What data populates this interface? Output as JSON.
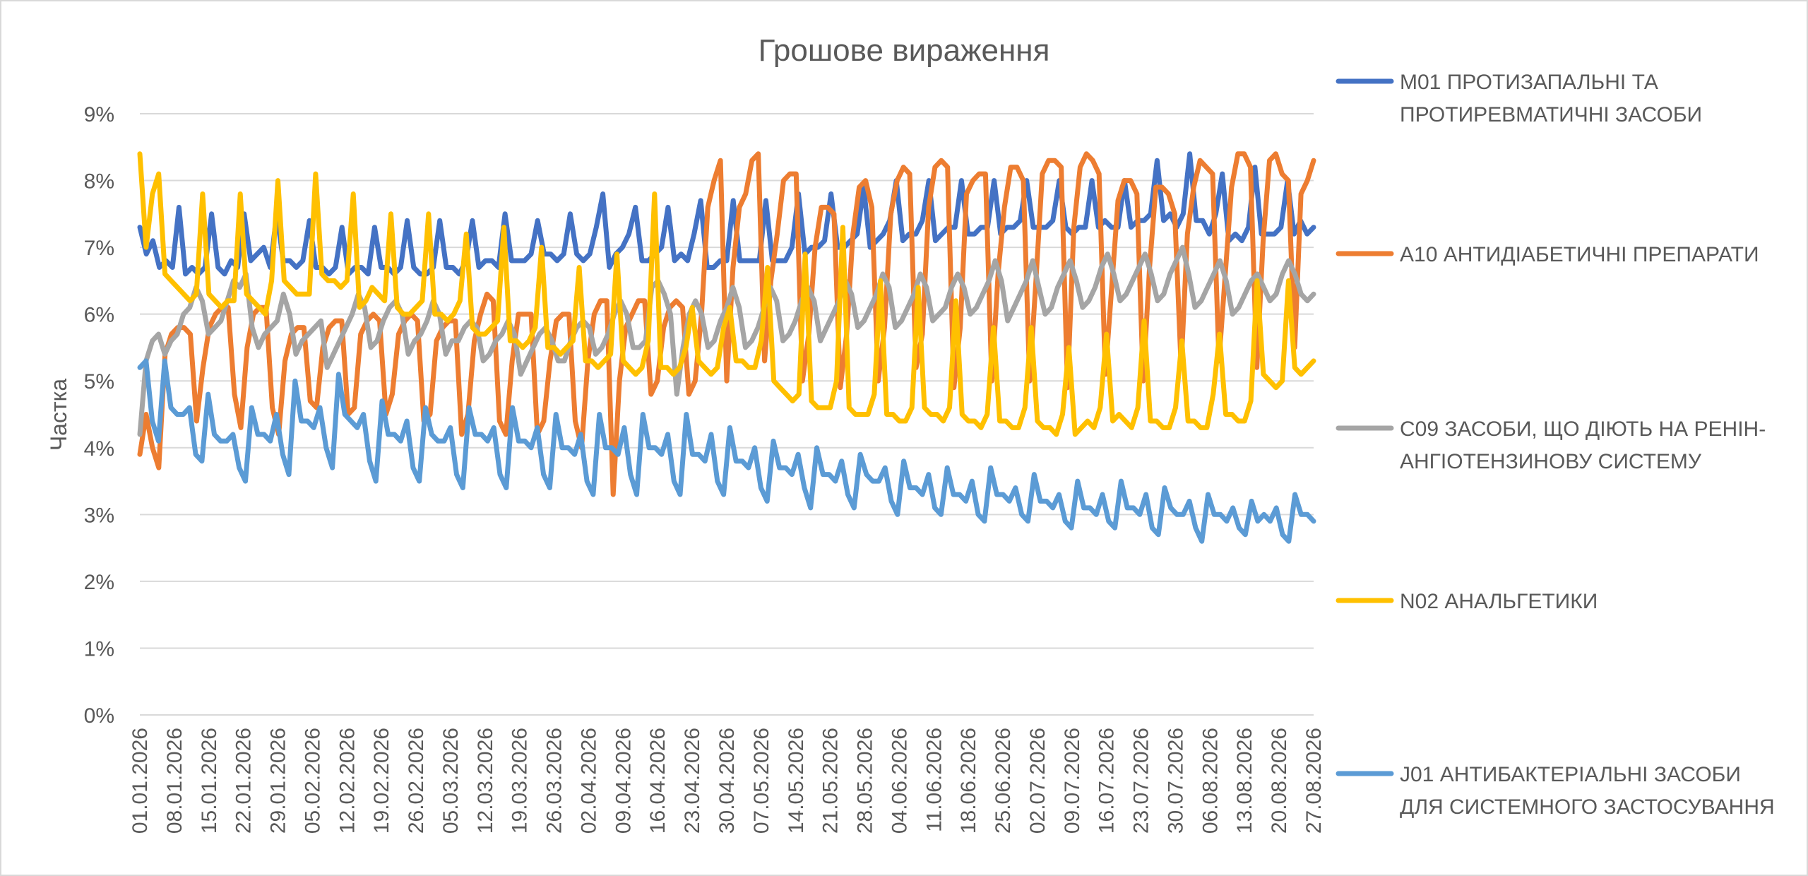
{
  "chart_data": {
    "type": "line",
    "title": "Грошове вираження",
    "ylabel": "Частка",
    "xlabel": "",
    "ylim": [
      0,
      9
    ],
    "y_ticks": [
      "0%",
      "1%",
      "2%",
      "3%",
      "4%",
      "5%",
      "6%",
      "7%",
      "8%",
      "9%"
    ],
    "grid": true,
    "legend_position": "right",
    "x_tick_labels": [
      "01.01.2026",
      "08.01.2026",
      "15.01.2026",
      "22.01.2026",
      "29.01.2026",
      "05.02.2026",
      "12.02.2026",
      "19.02.2026",
      "26.02.2026",
      "05.03.2026",
      "12.03.2026",
      "19.03.2026",
      "26.03.2026",
      "02.04.2026",
      "09.04.2026",
      "16.04.2026",
      "23.04.2026",
      "30.04.2026",
      "07.05.2026",
      "14.05.2026",
      "21.05.2026",
      "28.05.2026",
      "04.06.2026",
      "11.06.2026",
      "18.06.2026",
      "25.06.2026",
      "02.07.2026",
      "09.07.2026",
      "16.07.2026",
      "23.07.2026",
      "30.07.2026",
      "06.08.2026",
      "13.08.2026",
      "20.08.2026",
      "27.08.2026"
    ],
    "x_start": "01.01.2026",
    "x_end": "27.08.2026",
    "series": [
      {
        "name": "M01 ПРОТИЗАПАЛЬНІ ТА ПРОТИРЕВМАТИЧНІ ЗАСОБИ",
        "color": "#4472c4",
        "legend_lines": [
          "M01 ПРОТИЗАПАЛЬНІ ТА",
          "ПРОТИРЕВМАТИЧНІ ЗАСОБИ"
        ],
        "values": [
          7.3,
          6.9,
          7.1,
          6.7,
          6.8,
          6.7,
          7.6,
          6.6,
          6.7,
          6.6,
          6.7,
          7.5,
          6.7,
          6.6,
          6.8,
          6.7,
          7.5,
          6.8,
          6.9,
          7.0,
          6.7,
          7.5,
          6.8,
          6.8,
          6.7,
          6.8,
          7.4,
          6.7,
          6.7,
          6.6,
          6.7,
          7.3,
          6.6,
          6.7,
          6.7,
          6.6,
          7.3,
          6.7,
          6.7,
          6.6,
          6.7,
          7.4,
          6.7,
          6.6,
          6.6,
          6.7,
          7.4,
          6.7,
          6.7,
          6.6,
          6.8,
          7.4,
          6.7,
          6.8,
          6.8,
          6.7,
          7.5,
          6.8,
          6.8,
          6.8,
          6.9,
          7.4,
          6.9,
          6.9,
          6.8,
          6.9,
          7.5,
          6.9,
          6.8,
          6.9,
          7.3,
          7.8,
          6.7,
          6.9,
          7.0,
          7.2,
          7.6,
          6.8,
          6.8,
          6.9,
          7.0,
          7.6,
          6.8,
          6.9,
          6.8,
          7.2,
          7.7,
          6.7,
          6.7,
          6.8,
          6.8,
          7.7,
          6.8,
          6.8,
          6.8,
          6.8,
          7.7,
          6.8,
          6.8,
          6.8,
          7.0,
          7.8,
          6.9,
          7.0,
          7.0,
          7.1,
          7.8,
          7.0,
          7.0,
          7.1,
          7.2,
          7.9,
          7.0,
          7.1,
          7.2,
          7.4,
          8.0,
          7.1,
          7.2,
          7.2,
          7.4,
          8.0,
          7.1,
          7.2,
          7.3,
          7.3,
          8.0,
          7.2,
          7.2,
          7.3,
          7.3,
          8.0,
          7.2,
          7.3,
          7.3,
          7.4,
          8.0,
          7.3,
          7.3,
          7.3,
          7.4,
          8.0,
          7.3,
          7.2,
          7.3,
          7.3,
          8.0,
          7.3,
          7.4,
          7.3,
          7.3,
          8.0,
          7.3,
          7.4,
          7.4,
          7.5,
          8.3,
          7.4,
          7.5,
          7.3,
          7.5,
          8.4,
          7.4,
          7.4,
          7.2,
          7.5,
          8.1,
          7.1,
          7.2,
          7.1,
          7.3,
          8.2,
          7.2,
          7.2,
          7.2,
          7.3,
          8.0,
          7.2,
          7.4,
          7.2,
          7.3
        ]
      },
      {
        "name": "A10 АНТИДІАБЕТИЧНІ ПРЕПАРАТИ",
        "color": "#ed7d31",
        "legend_lines": [
          "A10 АНТИДІАБЕТИЧНІ ПРЕПАРАТИ"
        ],
        "values": [
          3.9,
          4.5,
          4.0,
          3.7,
          5.4,
          5.7,
          5.8,
          5.8,
          5.7,
          4.4,
          5.2,
          5.8,
          6.0,
          6.1,
          6.1,
          4.8,
          4.3,
          5.5,
          6.0,
          6.1,
          6.1,
          4.6,
          4.2,
          5.3,
          5.7,
          5.8,
          5.8,
          4.7,
          4.6,
          5.5,
          5.8,
          5.9,
          5.9,
          4.5,
          4.6,
          5.7,
          5.9,
          6.0,
          5.9,
          4.5,
          4.8,
          5.7,
          5.9,
          6.0,
          5.9,
          4.4,
          4.5,
          5.6,
          5.8,
          5.9,
          5.9,
          4.2,
          4.5,
          5.6,
          6.0,
          6.3,
          6.2,
          4.4,
          4.2,
          5.3,
          6.0,
          6.0,
          6.0,
          4.2,
          4.4,
          5.3,
          5.9,
          6.0,
          6.0,
          4.4,
          4.0,
          5.3,
          6.0,
          6.2,
          6.2,
          3.3,
          5.0,
          5.8,
          6.0,
          6.2,
          6.2,
          4.8,
          5.0,
          5.8,
          6.1,
          6.2,
          6.1,
          4.8,
          5.0,
          6.0,
          7.6,
          8.0,
          8.3,
          5.0,
          6.7,
          7.6,
          7.8,
          8.3,
          8.4,
          5.3,
          6.5,
          7.2,
          8.0,
          8.1,
          8.1,
          5.0,
          5.7,
          7.0,
          7.6,
          7.6,
          7.5,
          4.9,
          5.7,
          7.2,
          7.9,
          8.0,
          7.6,
          5.0,
          5.8,
          7.5,
          8.0,
          8.2,
          8.1,
          5.2,
          5.7,
          7.6,
          8.2,
          8.3,
          8.2,
          4.9,
          5.8,
          7.8,
          8.0,
          8.1,
          8.1,
          5.0,
          6.6,
          7.6,
          8.2,
          8.2,
          8.0,
          5.0,
          6.5,
          8.1,
          8.3,
          8.3,
          8.2,
          4.9,
          7.3,
          8.2,
          8.4,
          8.3,
          8.1,
          5.1,
          6.4,
          7.7,
          8.0,
          8.0,
          7.8,
          5.0,
          6.7,
          7.9,
          7.9,
          7.8,
          7.5,
          5.2,
          7.2,
          7.9,
          8.3,
          8.2,
          8.1,
          5.3,
          6.6,
          7.9,
          8.4,
          8.4,
          8.2,
          5.2,
          7.1,
          8.3,
          8.4,
          8.1,
          8.0,
          5.5,
          7.8,
          8.0,
          8.3
        ]
      },
      {
        "name": "C09 ЗАСОБИ, ЩО ДІЮТЬ НА РЕНІН-АНГІОТЕНЗИНОВУ СИСТЕМУ",
        "color": "#a5a5a5",
        "legend_lines": [
          "C09 ЗАСОБИ, ЩО ДІЮТЬ НА РЕНІН-",
          "АНГІОТЕНЗИНОВУ СИСТЕМУ"
        ],
        "values": [
          4.2,
          5.3,
          5.6,
          5.7,
          5.4,
          5.6,
          5.7,
          6.0,
          6.1,
          6.4,
          6.2,
          5.7,
          5.8,
          5.9,
          6.2,
          6.5,
          6.4,
          6.6,
          5.8,
          5.5,
          5.7,
          5.8,
          5.9,
          6.3,
          6.0,
          5.4,
          5.6,
          5.7,
          5.8,
          5.9,
          5.2,
          5.4,
          5.6,
          5.8,
          6.0,
          6.3,
          6.1,
          5.5,
          5.6,
          5.9,
          6.1,
          6.2,
          6.0,
          5.4,
          5.6,
          5.7,
          5.9,
          6.2,
          6.0,
          5.4,
          5.6,
          5.6,
          5.8,
          5.9,
          5.8,
          5.3,
          5.4,
          5.6,
          5.7,
          5.9,
          5.7,
          5.1,
          5.3,
          5.5,
          5.7,
          5.8,
          5.6,
          5.3,
          5.3,
          5.6,
          5.8,
          5.9,
          5.8,
          5.4,
          5.5,
          5.7,
          6.0,
          6.2,
          6.0,
          5.5,
          5.5,
          5.6,
          6.4,
          6.5,
          6.3,
          6.0,
          4.8,
          5.5,
          6.0,
          6.2,
          6.0,
          5.5,
          5.6,
          5.9,
          6.1,
          6.4,
          6.1,
          5.5,
          5.6,
          5.8,
          6.1,
          6.4,
          6.2,
          5.6,
          5.7,
          5.9,
          6.2,
          6.4,
          6.2,
          5.6,
          5.8,
          6.0,
          6.2,
          6.5,
          6.3,
          5.8,
          5.9,
          6.1,
          6.3,
          6.6,
          6.4,
          5.8,
          5.9,
          6.1,
          6.3,
          6.6,
          6.4,
          5.9,
          6.0,
          6.1,
          6.4,
          6.6,
          6.4,
          6.0,
          6.1,
          6.3,
          6.5,
          6.8,
          6.5,
          5.9,
          6.1,
          6.3,
          6.5,
          6.8,
          6.4,
          6.0,
          6.1,
          6.4,
          6.6,
          6.8,
          6.5,
          6.1,
          6.2,
          6.4,
          6.7,
          6.9,
          6.6,
          6.2,
          6.3,
          6.5,
          6.7,
          6.9,
          6.6,
          6.2,
          6.3,
          6.6,
          6.8,
          7.0,
          6.6,
          6.1,
          6.2,
          6.4,
          6.6,
          6.8,
          6.5,
          6.0,
          6.1,
          6.3,
          6.5,
          6.6,
          6.4,
          6.2,
          6.3,
          6.6,
          6.8,
          6.6,
          6.3,
          6.2,
          6.3
        ]
      },
      {
        "name": "N02 АНАЛЬГЕТИКИ",
        "color": "#ffc000",
        "legend_lines": [
          "N02 АНАЛЬГЕТИКИ"
        ],
        "values": [
          8.4,
          7.0,
          7.8,
          8.1,
          6.6,
          6.5,
          6.4,
          6.3,
          6.2,
          6.3,
          7.8,
          6.3,
          6.2,
          6.1,
          6.2,
          6.2,
          7.8,
          6.3,
          6.2,
          6.1,
          6.0,
          6.5,
          8.0,
          6.5,
          6.4,
          6.3,
          6.3,
          6.3,
          8.1,
          6.6,
          6.5,
          6.5,
          6.4,
          6.5,
          7.8,
          6.1,
          6.2,
          6.4,
          6.3,
          6.2,
          7.5,
          6.1,
          6.0,
          6.0,
          6.1,
          6.2,
          7.5,
          6.0,
          6.0,
          5.9,
          6.0,
          6.2,
          7.2,
          5.8,
          5.7,
          5.7,
          5.8,
          5.9,
          7.3,
          5.6,
          5.6,
          5.5,
          5.6,
          5.8,
          7.0,
          5.5,
          5.5,
          5.4,
          5.5,
          5.6,
          6.7,
          5.3,
          5.3,
          5.2,
          5.3,
          5.4,
          6.9,
          5.3,
          5.2,
          5.1,
          5.2,
          5.6,
          7.8,
          5.2,
          5.2,
          5.1,
          5.2,
          5.5,
          6.1,
          5.3,
          5.2,
          5.1,
          5.2,
          5.8,
          6.1,
          5.3,
          5.3,
          5.2,
          5.2,
          5.6,
          6.7,
          5.0,
          4.9,
          4.8,
          4.7,
          4.8,
          6.9,
          4.7,
          4.6,
          4.6,
          4.6,
          5.0,
          7.3,
          4.6,
          4.5,
          4.5,
          4.5,
          4.8,
          6.5,
          4.5,
          4.5,
          4.4,
          4.4,
          4.6,
          6.4,
          4.6,
          4.5,
          4.5,
          4.4,
          4.6,
          6.2,
          4.5,
          4.4,
          4.4,
          4.3,
          4.5,
          5.8,
          4.4,
          4.4,
          4.3,
          4.3,
          4.6,
          5.8,
          4.4,
          4.3,
          4.3,
          4.2,
          4.5,
          5.5,
          4.2,
          4.3,
          4.4,
          4.3,
          4.6,
          5.7,
          4.4,
          4.5,
          4.4,
          4.3,
          4.6,
          5.9,
          4.4,
          4.4,
          4.3,
          4.3,
          4.6,
          5.6,
          4.4,
          4.4,
          4.3,
          4.3,
          4.8,
          5.7,
          4.5,
          4.5,
          4.4,
          4.4,
          4.7,
          6.5,
          5.1,
          5.0,
          4.9,
          5.0,
          6.5,
          5.2,
          5.1,
          5.2,
          5.3
        ]
      },
      {
        "name": "J01 АНТИБАКТЕРІАЛЬНІ ЗАСОБИ ДЛЯ СИСТЕМНОГО ЗАСТОСУВАННЯ",
        "color": "#5b9bd5",
        "legend_lines": [
          "J01 АНТИБАКТЕРІАЛЬНІ ЗАСОБИ",
          "ДЛЯ СИСТЕМНОГО ЗАСТОСУВАННЯ"
        ],
        "values": [
          5.2,
          5.3,
          4.4,
          4.1,
          5.3,
          4.6,
          4.5,
          4.5,
          4.6,
          3.9,
          3.8,
          4.8,
          4.2,
          4.1,
          4.1,
          4.2,
          3.7,
          3.5,
          4.6,
          4.2,
          4.2,
          4.1,
          4.5,
          3.9,
          3.6,
          5.0,
          4.4,
          4.4,
          4.3,
          4.6,
          4.0,
          3.7,
          5.1,
          4.5,
          4.4,
          4.3,
          4.5,
          3.8,
          3.5,
          4.7,
          4.2,
          4.2,
          4.1,
          4.4,
          3.7,
          3.5,
          4.6,
          4.2,
          4.1,
          4.1,
          4.3,
          3.6,
          3.4,
          4.6,
          4.2,
          4.2,
          4.1,
          4.3,
          3.6,
          3.4,
          4.6,
          4.1,
          4.1,
          4.0,
          4.3,
          3.6,
          3.4,
          4.5,
          4.0,
          4.0,
          3.9,
          4.2,
          3.5,
          3.3,
          4.5,
          4.0,
          4.0,
          3.9,
          4.3,
          3.6,
          3.3,
          4.5,
          4.0,
          4.0,
          3.9,
          4.2,
          3.5,
          3.3,
          4.5,
          3.9,
          3.9,
          3.8,
          4.2,
          3.5,
          3.3,
          4.3,
          3.8,
          3.8,
          3.7,
          4.0,
          3.4,
          3.2,
          4.1,
          3.7,
          3.7,
          3.6,
          3.9,
          3.4,
          3.1,
          4.0,
          3.6,
          3.6,
          3.5,
          3.8,
          3.3,
          3.1,
          3.9,
          3.6,
          3.5,
          3.5,
          3.7,
          3.2,
          3.0,
          3.8,
          3.4,
          3.4,
          3.3,
          3.6,
          3.1,
          3.0,
          3.7,
          3.3,
          3.3,
          3.2,
          3.5,
          3.0,
          2.9,
          3.7,
          3.3,
          3.3,
          3.2,
          3.4,
          3.0,
          2.9,
          3.6,
          3.2,
          3.2,
          3.1,
          3.3,
          2.9,
          2.8,
          3.5,
          3.1,
          3.1,
          3.0,
          3.3,
          2.9,
          2.8,
          3.5,
          3.1,
          3.1,
          3.0,
          3.3,
          2.8,
          2.7,
          3.4,
          3.1,
          3.0,
          3.0,
          3.2,
          2.8,
          2.6,
          3.3,
          3.0,
          3.0,
          2.9,
          3.1,
          2.8,
          2.7,
          3.2,
          2.9,
          3.0,
          2.9,
          3.1,
          2.7,
          2.6,
          3.3,
          3.0,
          3.0,
          2.9
        ]
      }
    ]
  }
}
